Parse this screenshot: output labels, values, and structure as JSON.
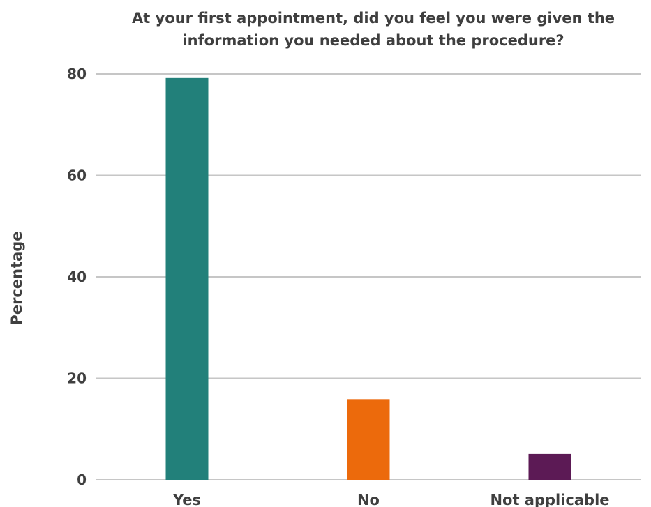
{
  "chart_data": {
    "type": "bar",
    "title_lines": [
      "At your first appointment, did you feel you were given the",
      "information you needed about the procedure?"
    ],
    "xlabel": "",
    "ylabel": "Percentage",
    "categories": [
      "Yes",
      "No",
      "Not applicable"
    ],
    "values": [
      79.2,
      15.9,
      5.1
    ],
    "bar_colors": [
      "#22807a",
      "#ec6a0c",
      "#5c1a55"
    ],
    "ylim": [
      0,
      80
    ],
    "yticks": [
      0,
      20,
      40,
      60,
      80
    ],
    "grid": true,
    "legend": "none"
  }
}
